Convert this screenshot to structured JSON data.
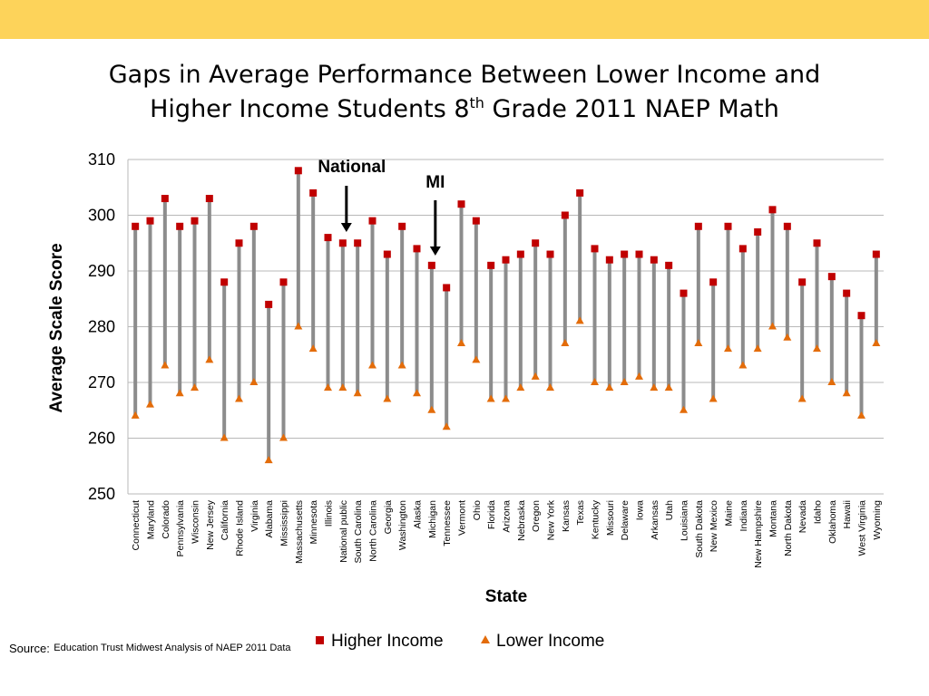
{
  "page": {
    "band_color": "#fdd35a"
  },
  "title": {
    "line1": "Gaps in Average Performance Between Lower Income and",
    "line2_prefix": "Higher Income Students 8",
    "line2_sup": "th",
    "line2_suffix": " Grade 2011 NAEP Math"
  },
  "source": {
    "label": "Source:",
    "text": "Education Trust Midwest Analysis of NAEP 2011 Data"
  },
  "chart_data": {
    "type": "scatter",
    "xlabel": "State",
    "ylabel": "Average Scale Score",
    "ylim": [
      250,
      310
    ],
    "yticks": [
      250,
      260,
      270,
      280,
      290,
      300,
      310
    ],
    "grid": true,
    "legend_position": "bottom",
    "annotations": [
      {
        "text": "National",
        "category": "National public",
        "arrow": "down"
      },
      {
        "text": "MI",
        "category": "Michigan",
        "arrow": "down"
      }
    ],
    "colors": {
      "higher": "#c00000",
      "lower": "#e36c0a",
      "gap_line": "#8c8c8c",
      "grid": "#b8b8b8"
    },
    "categories": [
      "Connecticut",
      "Maryland",
      "Colorado",
      "Pennsylvania",
      "Wisconsin",
      "New Jersey",
      "California",
      "Rhode Island",
      "Virginia",
      "Alabama",
      "Mississippi",
      "Massachusetts",
      "Minnesota",
      "Illinois",
      "National public",
      "South Carolina",
      "North Carolina",
      "Georgia",
      "Washington",
      "Alaska",
      "Michigan",
      "Tennessee",
      "Vermont",
      "Ohio",
      "Florida",
      "Arizona",
      "Nebraska",
      "Oregon",
      "New York",
      "Kansas",
      "Texas",
      "Kentucky",
      "Missouri",
      "Delaware",
      "Iowa",
      "Arkansas",
      "Utah",
      "Louisiana",
      "South Dakota",
      "New Mexico",
      "Maine",
      "Indiana",
      "New Hampshire",
      "Montana",
      "North Dakota",
      "Nevada",
      "Idaho",
      "Oklahoma",
      "Hawaii",
      "West Virginia",
      "Wyoming"
    ],
    "series": [
      {
        "name": "Higher Income",
        "marker": "square",
        "values": [
          298,
          299,
          303,
          298,
          299,
          303,
          288,
          295,
          298,
          284,
          288,
          308,
          304,
          296,
          295,
          295,
          299,
          293,
          298,
          294,
          291,
          287,
          302,
          299,
          291,
          292,
          293,
          295,
          293,
          300,
          304,
          294,
          292,
          293,
          293,
          292,
          291,
          286,
          298,
          288,
          298,
          294,
          297,
          301,
          298,
          288,
          295,
          289,
          286,
          282,
          293
        ]
      },
      {
        "name": "Lower Income",
        "marker": "triangle",
        "values": [
          264,
          266,
          273,
          268,
          269,
          274,
          260,
          267,
          270,
          256,
          260,
          280,
          276,
          269,
          269,
          268,
          273,
          267,
          273,
          268,
          265,
          262,
          277,
          274,
          267,
          267,
          269,
          271,
          269,
          277,
          281,
          270,
          269,
          270,
          271,
          269,
          269,
          265,
          277,
          267,
          276,
          273,
          276,
          280,
          278,
          267,
          276,
          270,
          268,
          264,
          277
        ]
      }
    ]
  }
}
